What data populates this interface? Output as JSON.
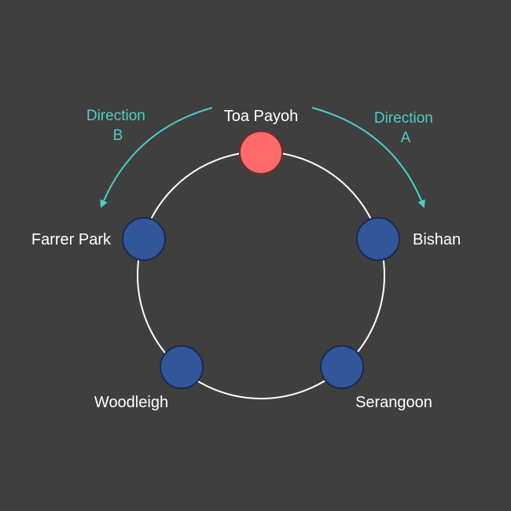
{
  "colors": {
    "background": "#3f3f3f",
    "loop": "#ffffff",
    "current_station": "#ff6b6b",
    "station": "#335599",
    "station_border": "#1a2a4a",
    "direction_arrow": "#4ecdc4"
  },
  "stations": [
    {
      "id": "toa-payoh",
      "name": "Toa Payoh",
      "current": true
    },
    {
      "id": "bishan",
      "name": "Bishan",
      "current": false
    },
    {
      "id": "serangoon",
      "name": "Serangoon",
      "current": false
    },
    {
      "id": "woodleigh",
      "name": "Woodleigh",
      "current": false
    },
    {
      "id": "farrer-park",
      "name": "Farrer Park",
      "current": false
    }
  ],
  "directions": {
    "a": {
      "line1": "Direction",
      "line2": "A"
    },
    "b": {
      "line1": "Direction",
      "line2": "B"
    }
  }
}
